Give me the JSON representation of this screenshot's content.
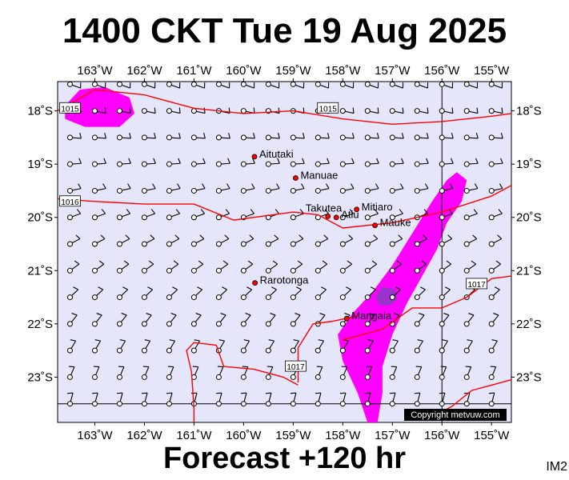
{
  "title": "1400 CKT Tue 19 Aug 2025",
  "subtitle": "Forecast +120 hr",
  "product_code": "IM2",
  "credit": "Copyright metvuw.com",
  "colors": {
    "ocean": "#e6e6fb",
    "isobar": "#ff0000",
    "precip_light": "#ff00ff",
    "precip_heavy": "#9933cc",
    "island": "#ff0000"
  },
  "map_data": {
    "lon_range": [
      -163.75,
      -154.6
    ],
    "lat_range": [
      -23.85,
      -17.45
    ],
    "lon_ticks": [
      {
        "value": -163,
        "label": "163˚W"
      },
      {
        "value": -162,
        "label": "162˚W"
      },
      {
        "value": -161,
        "label": "161˚W"
      },
      {
        "value": -160,
        "label": "160˚W"
      },
      {
        "value": -159,
        "label": "159˚W"
      },
      {
        "value": -158,
        "label": "158˚W"
      },
      {
        "value": -157,
        "label": "157˚W"
      },
      {
        "value": -156,
        "label": "156˚W"
      },
      {
        "value": -155,
        "label": "155˚W"
      }
    ],
    "lat_ticks": [
      {
        "value": -18,
        "label": "18˚S"
      },
      {
        "value": -19,
        "label": "19˚S"
      },
      {
        "value": -20,
        "label": "20˚S"
      },
      {
        "value": -21,
        "label": "21˚S"
      },
      {
        "value": -22,
        "label": "22˚S"
      },
      {
        "value": -23,
        "label": "23˚S"
      }
    ],
    "islands": [
      {
        "name": "Aitutaki",
        "lon": -159.78,
        "lat": -18.86
      },
      {
        "name": "Manuae",
        "lon": -158.95,
        "lat": -19.26
      },
      {
        "name": "Atiu",
        "lon": -158.13,
        "lat": -20.0
      },
      {
        "name": "Mitiaro",
        "lon": -157.72,
        "lat": -19.85
      },
      {
        "name": "Takutea",
        "lon": -158.3,
        "lat": -19.98
      },
      {
        "name": "Mauke",
        "lon": -157.35,
        "lat": -20.15
      },
      {
        "name": "Rarotonga",
        "lon": -159.77,
        "lat": -21.23
      },
      {
        "name": "Mangaia",
        "lon": -157.92,
        "lat": -21.9
      }
    ],
    "isobars": [
      {
        "label": "1015",
        "label_at": [
          -163.5,
          -17.95
        ],
        "points": [
          [
            -163.75,
            -18.0
          ],
          [
            -163.0,
            -17.6
          ],
          [
            -162.0,
            -17.7
          ],
          [
            -161.0,
            -17.95
          ],
          [
            -160.0,
            -18.05
          ],
          [
            -159.0,
            -18.0
          ],
          [
            -158.0,
            -18.15
          ],
          [
            -157.0,
            -18.25
          ],
          [
            -156.0,
            -18.2
          ],
          [
            -155.0,
            -18.1
          ],
          [
            -154.6,
            -18.05
          ]
        ]
      },
      {
        "label": "1015",
        "label_at": [
          -158.3,
          -17.95
        ],
        "points": []
      },
      {
        "label": "1016",
        "label_at": [
          -163.5,
          -19.7
        ],
        "points": [
          [
            -163.75,
            -19.65
          ],
          [
            -163.0,
            -19.7
          ],
          [
            -162.0,
            -19.75
          ],
          [
            -161.0,
            -19.75
          ],
          [
            -160.2,
            -20.05
          ],
          [
            -159.0,
            -19.9
          ],
          [
            -158.5,
            -19.95
          ],
          [
            -158.0,
            -20.2
          ],
          [
            -157.0,
            -20.1
          ],
          [
            -156.0,
            -19.9
          ],
          [
            -155.0,
            -19.6
          ],
          [
            -154.6,
            -19.4
          ]
        ]
      },
      {
        "label": "1017",
        "label_at": [
          -155.3,
          -21.25
        ],
        "points": [
          [
            -158.0,
            -22.3
          ],
          [
            -157.2,
            -22.1
          ],
          [
            -156.6,
            -21.7
          ],
          [
            -156.0,
            -21.7
          ],
          [
            -155.5,
            -21.5
          ],
          [
            -155.0,
            -21.15
          ],
          [
            -154.6,
            -21.1
          ]
        ]
      },
      {
        "label": "1017",
        "label_at": [
          -158.95,
          -22.8
        ],
        "points": [
          [
            -158.9,
            -23.1
          ],
          [
            -158.9,
            -22.45
          ],
          [
            -158.6,
            -22.0
          ],
          [
            -158.2,
            -21.95
          ],
          [
            -157.7,
            -21.85
          ]
        ]
      },
      {
        "label": "",
        "label_at": [
          0,
          0
        ],
        "points": [
          [
            -161.0,
            -23.85
          ],
          [
            -161.0,
            -23.6
          ],
          [
            -161.05,
            -22.9
          ],
          [
            -161.15,
            -22.5
          ],
          [
            -161.0,
            -22.35
          ],
          [
            -160.55,
            -22.4
          ],
          [
            -160.4,
            -22.8
          ],
          [
            -159.8,
            -22.85
          ],
          [
            -159.2,
            -23.0
          ],
          [
            -158.9,
            -23.15
          ]
        ]
      },
      {
        "label": "",
        "label_at": [
          0,
          0
        ],
        "points": [
          [
            -156.2,
            -23.75
          ],
          [
            -155.8,
            -23.55
          ],
          [
            -155.4,
            -23.25
          ],
          [
            -155.0,
            -23.15
          ],
          [
            -154.6,
            -23.05
          ]
        ]
      }
    ],
    "precip_areas": [
      {
        "level": "light",
        "points": [
          [
            -163.6,
            -17.9
          ],
          [
            -163.3,
            -17.6
          ],
          [
            -162.8,
            -17.55
          ],
          [
            -162.3,
            -17.75
          ],
          [
            -162.2,
            -18.05
          ],
          [
            -162.5,
            -18.3
          ],
          [
            -163.2,
            -18.3
          ],
          [
            -163.6,
            -18.15
          ]
        ]
      },
      {
        "level": "light",
        "points": [
          [
            -157.5,
            -23.85
          ],
          [
            -157.7,
            -23.3
          ],
          [
            -158.0,
            -22.7
          ],
          [
            -158.1,
            -22.2
          ],
          [
            -157.8,
            -21.8
          ],
          [
            -157.4,
            -21.4
          ],
          [
            -157.0,
            -20.9
          ],
          [
            -156.6,
            -20.3
          ],
          [
            -156.2,
            -19.7
          ],
          [
            -155.9,
            -19.3
          ],
          [
            -155.7,
            -19.15
          ],
          [
            -155.5,
            -19.3
          ],
          [
            -155.6,
            -19.7
          ],
          [
            -155.9,
            -20.1
          ],
          [
            -156.1,
            -20.6
          ],
          [
            -156.4,
            -21.1
          ],
          [
            -156.7,
            -21.6
          ],
          [
            -157.0,
            -22.2
          ],
          [
            -157.2,
            -22.8
          ],
          [
            -157.2,
            -23.3
          ],
          [
            -157.3,
            -23.85
          ]
        ]
      },
      {
        "level": "heavy",
        "points": [
          [
            -157.35,
            -21.5
          ],
          [
            -157.2,
            -21.3
          ],
          [
            -156.95,
            -21.35
          ],
          [
            -156.9,
            -21.55
          ],
          [
            -157.05,
            -21.65
          ],
          [
            -157.25,
            -21.65
          ]
        ]
      }
    ],
    "wind_grid": {
      "lon_start": -163.5,
      "lon_step": 0.5,
      "lon_count": 18,
      "lat_start": -17.5,
      "lat_step": 0.5,
      "lat_count": 13
    }
  }
}
